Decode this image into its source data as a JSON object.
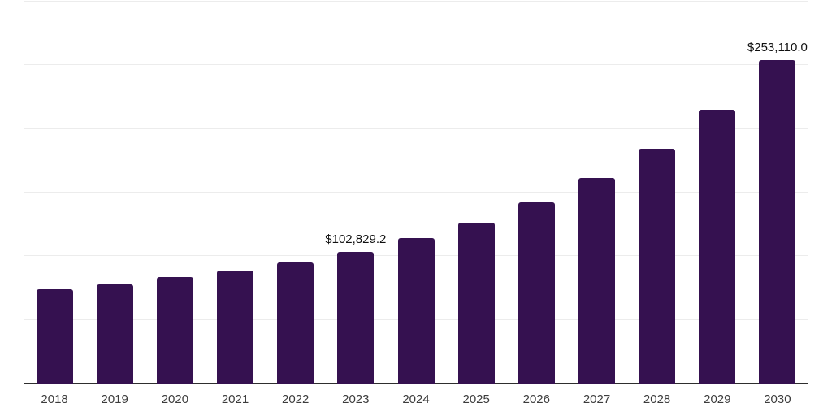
{
  "chart_data": {
    "type": "bar",
    "title": "",
    "xlabel": "",
    "ylabel": "",
    "categories": [
      "2018",
      "2019",
      "2020",
      "2021",
      "2022",
      "2023",
      "2024",
      "2025",
      "2026",
      "2027",
      "2028",
      "2029",
      "2030"
    ],
    "values": [
      73200,
      77300,
      82700,
      88100,
      94500,
      102829.2,
      113500,
      126000,
      141500,
      160600,
      184100,
      214700,
      253110.0
    ],
    "value_labels": [
      "",
      "",
      "",
      "",
      "",
      "$102,829.2",
      "",
      "",
      "",
      "",
      "",
      "",
      "$253,110.0"
    ],
    "ylim": [
      0,
      300000
    ],
    "gridline_step": 50000,
    "grid": "on",
    "legend": "none",
    "yaxis_tick_labels": "hidden",
    "colors": {
      "bar": "#351150",
      "gridline": "#ececec",
      "axis_line": "#2e2e2e",
      "tick_label": "#3c3c3c",
      "value_label": "#101010",
      "background": "#ffffff"
    }
  }
}
